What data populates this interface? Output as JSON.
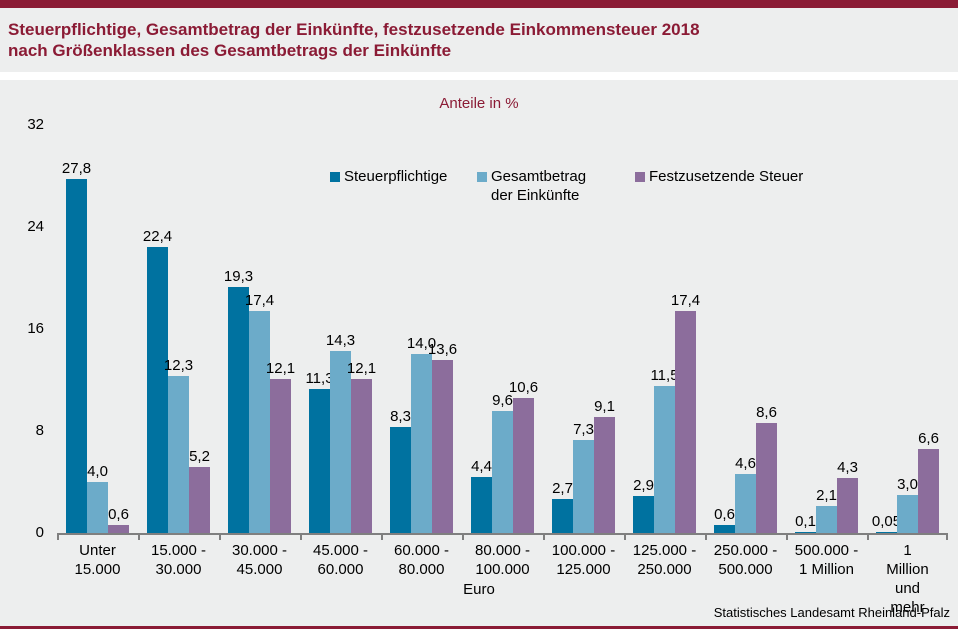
{
  "header": {
    "title_line1": "Steuerpflichtige, Gesamtbetrag der Einkünfte, festzusetzende Einkommensteuer 2018",
    "title_line2": "nach Größenklassen des Gesamtbetrags der Einkünfte"
  },
  "footer": {
    "source": "Statistisches Landesamt Rheinland-Pfalz"
  },
  "colors": {
    "accent": "#8B1B35",
    "panel_bg": "#EDEEEE",
    "axis_line": "#7F7F7F",
    "text": "#000000",
    "series1": "#0072A0",
    "series2": "#6CABC9",
    "series3": "#8C6D9C"
  },
  "chart_data": {
    "type": "bar",
    "title": "Anteile in %",
    "xlabel": "Euro",
    "ylabel": "",
    "ylim": [
      0,
      32
    ],
    "yticks": [
      0,
      8,
      16,
      24,
      32
    ],
    "grid": false,
    "legend_position": "top",
    "categories": [
      "Unter\n15.000",
      "15.000 -\n30.000",
      "30.000 -\n45.000",
      "45.000 -\n60.000",
      "60.000 -\n80.000",
      "80.000 -\n100.000",
      "100.000 -\n125.000",
      "125.000 -\n250.000",
      "250.000 -\n500.000",
      "500.000 -\n1 Million",
      "1 Million\nund mehr"
    ],
    "series": [
      {
        "name": "Steuerpflichtige",
        "legend_label": "Steuerpflichtige",
        "color_key": "series1",
        "values": [
          27.8,
          22.4,
          19.3,
          11.3,
          8.3,
          4.4,
          2.7,
          2.9,
          0.6,
          0.1,
          0.05
        ],
        "labels": [
          "27,8",
          "22,4",
          "19,3",
          "11,3",
          "8,3",
          "4,4",
          "2,7",
          "2,9",
          "0,6",
          "0,1",
          "0,05"
        ]
      },
      {
        "name": "Gesamtbetrag der Einkünfte",
        "legend_label": "Gesamtbetrag\nder Einkünfte",
        "color_key": "series2",
        "values": [
          4.0,
          12.3,
          17.4,
          14.3,
          14.0,
          9.6,
          7.3,
          11.5,
          4.6,
          2.1,
          3.0
        ],
        "labels": [
          "4,0",
          "12,3",
          "17,4",
          "14,3",
          "14,0",
          "9,6",
          "7,3",
          "11,5",
          "4,6",
          "2,1",
          "3,0"
        ]
      },
      {
        "name": "Festzusetzende Steuer",
        "legend_label": "Festzusetzende Steuer",
        "color_key": "series3",
        "values": [
          0.6,
          5.2,
          12.1,
          12.1,
          13.6,
          10.6,
          9.1,
          17.4,
          8.6,
          4.3,
          6.6
        ],
        "labels": [
          "0,6",
          "5,2",
          "12,1",
          "12,1",
          "13,6",
          "10,6",
          "9,1",
          "17,4",
          "8,6",
          "4,3",
          "6,6"
        ]
      }
    ]
  }
}
